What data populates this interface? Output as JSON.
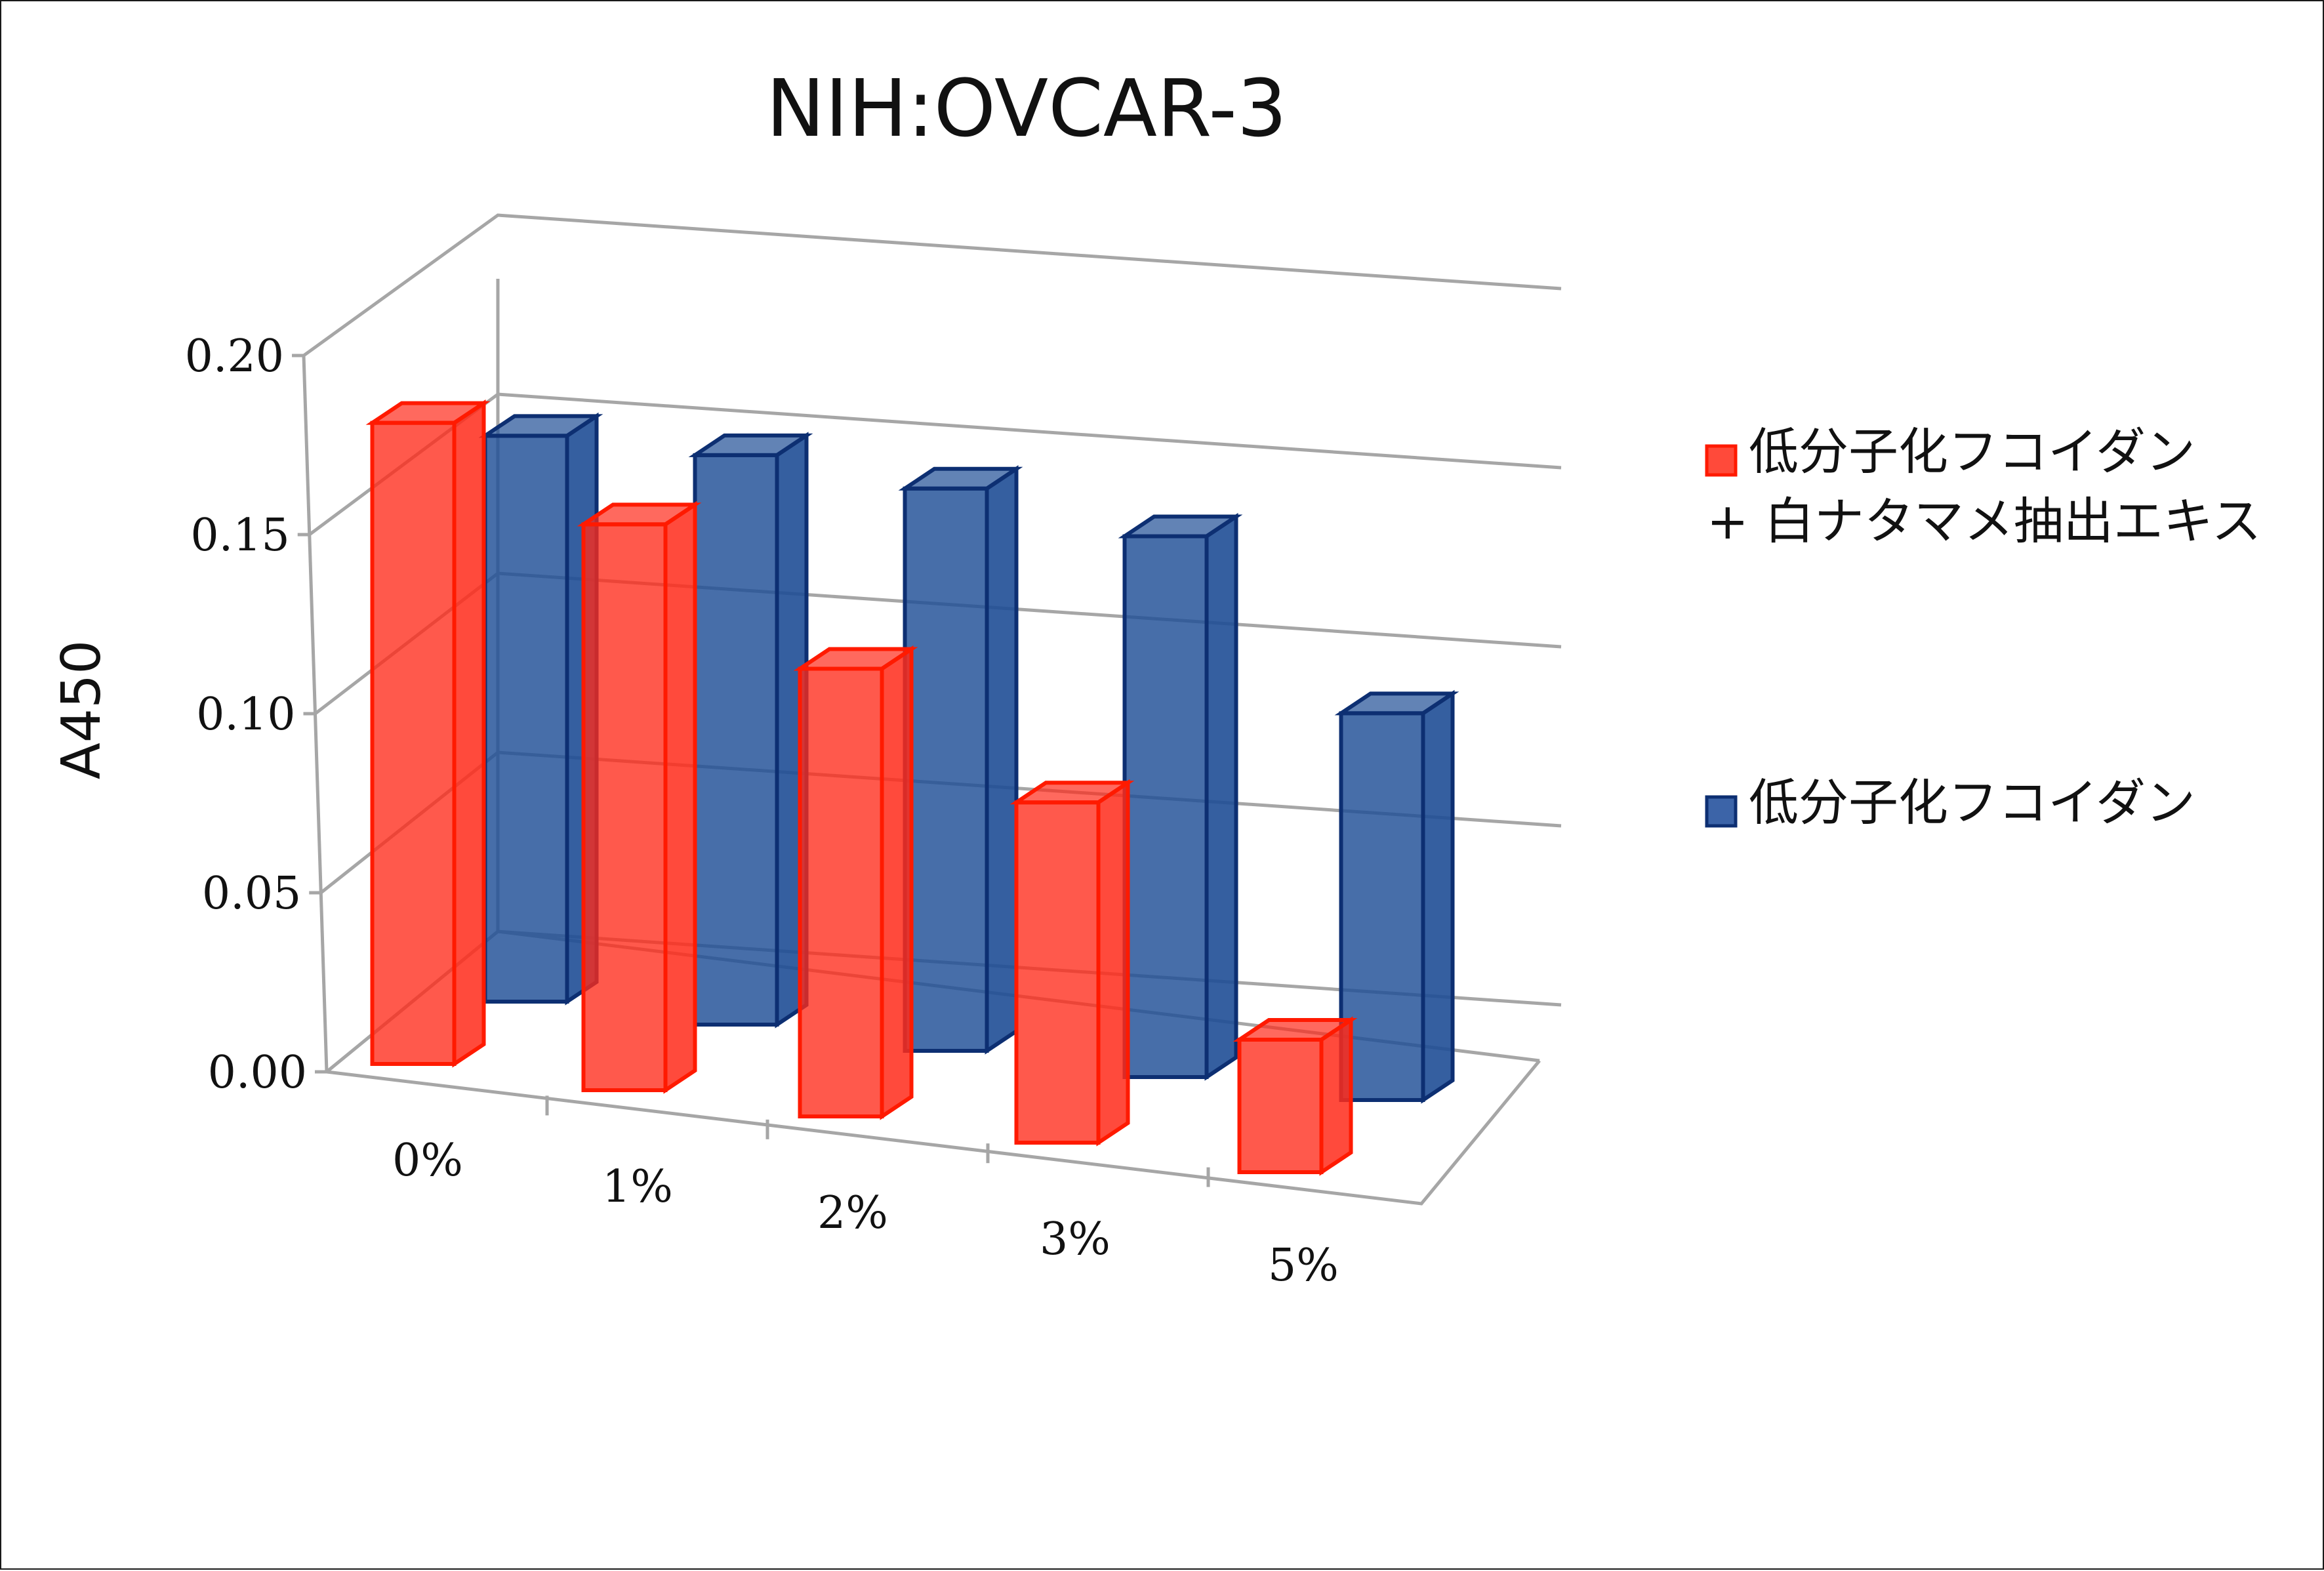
{
  "chart_data": {
    "type": "bar",
    "style": "3d-clustered",
    "title": "NIH:OVCAR-3",
    "ylabel": "A450",
    "xlabel": "",
    "ylim": [
      0,
      0.2
    ],
    "yticks": [
      "0.00",
      "0.05",
      "0.10",
      "0.15",
      "0.20"
    ],
    "categories": [
      "0%",
      "1%",
      "2%",
      "3%",
      "5%"
    ],
    "grid": true,
    "legend_position": "right",
    "series": [
      {
        "name": "低分子化フコイダン\n+ 白ナタマメ抽出エキス",
        "legend_lines": [
          "低分子化フコイダン",
          "+ 白ナタマメ抽出エキス"
        ],
        "color": "#ff2a1a",
        "values": [
          0.179,
          0.158,
          0.125,
          0.095,
          0.037
        ]
      },
      {
        "name": "低分子化フコイダン",
        "legend_lines": [
          "低分子化フコイダン"
        ],
        "color": "#1f4e96",
        "values": [
          0.158,
          0.159,
          0.157,
          0.151,
          0.108
        ]
      }
    ]
  }
}
